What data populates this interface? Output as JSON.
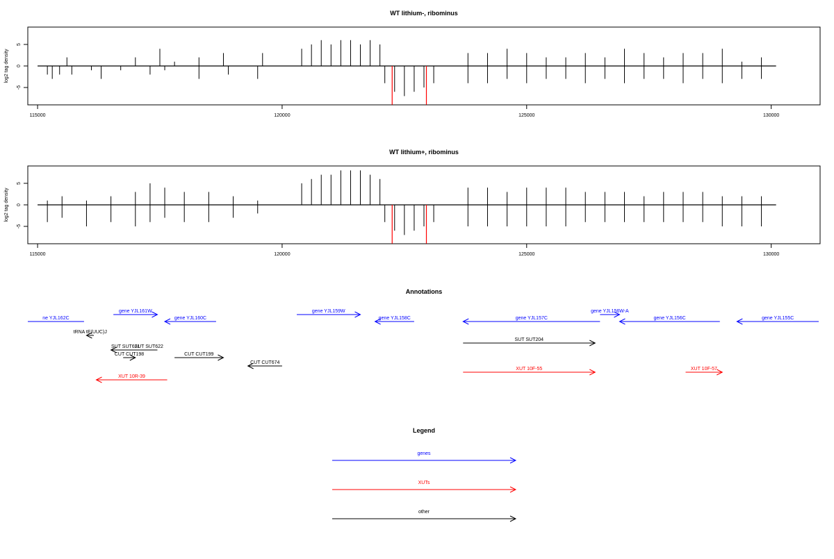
{
  "colors": {
    "genes": "#0000ff",
    "xuts": "#ff0000",
    "other": "#000000",
    "bar": "#000000",
    "highlight": "#ff0000"
  },
  "chart_data": [
    {
      "type": "bar",
      "title": "WT lithium-, ribominus",
      "xlabel": "",
      "ylabel": "log2 tag density",
      "xlim": [
        114800,
        131000
      ],
      "ylim": [
        -9,
        9
      ],
      "xticks": [
        {
          "value": 115000,
          "label": "115000"
        },
        {
          "value": 120000,
          "label": "120000"
        },
        {
          "value": 125000,
          "label": "125000"
        },
        {
          "value": 130000,
          "label": "130000"
        }
      ],
      "yticks": [
        {
          "value": 5,
          "label": "5"
        },
        {
          "value": 0,
          "label": "0"
        },
        {
          "value": -5,
          "label": "-5"
        }
      ],
      "series": [
        {
          "x": [
            115200,
            115400,
            115600,
            116000,
            116300,
            117000,
            117500,
            117800,
            118300,
            118800,
            119300,
            119600
          ],
          "values": [
            0,
            0,
            2,
            0,
            0,
            2,
            4,
            1,
            2,
            3,
            0,
            3
          ]
        },
        {
          "x": [
            115200,
            115300,
            115450,
            115700,
            116100,
            116300,
            116700,
            117300,
            117600,
            118300,
            118900,
            119500
          ],
          "values": [
            -2,
            -3,
            -2,
            -2,
            -1,
            -3,
            -1,
            -2,
            -1,
            -3,
            -2,
            -3
          ]
        },
        {
          "x": [
            120400,
            120600,
            120800,
            121000,
            121200,
            121400,
            121600,
            121800,
            122000
          ],
          "values": [
            4,
            5,
            6,
            5,
            6,
            6,
            5,
            6,
            5
          ]
        },
        {
          "x": [
            122100,
            122300,
            122500,
            122700,
            122900,
            123100
          ],
          "values": [
            -4,
            -6,
            -7,
            -6,
            -5,
            -4
          ]
        },
        {
          "x": [
            123800,
            124200,
            124600,
            125000,
            125400,
            125800,
            126200,
            126600,
            127000,
            127400,
            127800,
            128200,
            128600,
            129000,
            129400,
            129800
          ],
          "values": [
            3,
            3,
            4,
            3,
            2,
            2,
            3,
            2,
            4,
            3,
            2,
            3,
            3,
            4,
            1,
            2
          ]
        },
        {
          "x": [
            123800,
            124200,
            124600,
            125000,
            125400,
            125800,
            126200,
            126600,
            127000,
            127400,
            127800,
            128200,
            128600,
            129000,
            129400,
            129800
          ],
          "values": [
            -4,
            -4,
            -3,
            -4,
            -3,
            -3,
            -4,
            -3,
            -4,
            -3,
            -3,
            -4,
            -3,
            -4,
            -3,
            -3
          ]
        }
      ],
      "highlights": [
        {
          "x": 122250,
          "value": -9
        },
        {
          "x": 122950,
          "value": -9
        }
      ]
    },
    {
      "type": "bar",
      "title": "WT lithium+, ribominus",
      "xlabel": "",
      "ylabel": "log2 tag density",
      "xlim": [
        114800,
        131000
      ],
      "ylim": [
        -9,
        9
      ],
      "xticks": [
        {
          "value": 115000,
          "label": "115000"
        },
        {
          "value": 120000,
          "label": "120000"
        },
        {
          "value": 125000,
          "label": "125000"
        },
        {
          "value": 130000,
          "label": "130000"
        }
      ],
      "yticks": [
        {
          "value": 5,
          "label": "5"
        },
        {
          "value": 0,
          "label": "0"
        },
        {
          "value": -5,
          "label": "-5"
        }
      ],
      "series": [
        {
          "x": [
            115200,
            115500,
            116000,
            116500,
            117000,
            117300,
            117600,
            118000,
            118500,
            119000,
            119500
          ],
          "values": [
            1,
            2,
            1,
            2,
            3,
            5,
            4,
            3,
            3,
            2,
            1
          ]
        },
        {
          "x": [
            115200,
            115500,
            116000,
            116500,
            117000,
            117300,
            117600,
            118000,
            118500,
            119000,
            119500
          ],
          "values": [
            -4,
            -3,
            -5,
            -4,
            -5,
            -4,
            -3,
            -4,
            -4,
            -3,
            -2
          ]
        },
        {
          "x": [
            120400,
            120600,
            120800,
            121000,
            121200,
            121400,
            121600,
            121800,
            122000
          ],
          "values": [
            5,
            6,
            7,
            7,
            8,
            8,
            8,
            7,
            6
          ]
        },
        {
          "x": [
            122100,
            122300,
            122500,
            122700,
            122900,
            123100
          ],
          "values": [
            -4,
            -6,
            -7,
            -6,
            -5,
            -4
          ]
        },
        {
          "x": [
            123800,
            124200,
            124600,
            125000,
            125400,
            125800,
            126200,
            126600,
            127000,
            127400,
            127800,
            128200,
            128600,
            129000,
            129400,
            129800
          ],
          "values": [
            4,
            4,
            3,
            4,
            4,
            4,
            3,
            3,
            3,
            2,
            3,
            3,
            3,
            2,
            2,
            2
          ]
        },
        {
          "x": [
            123800,
            124200,
            124600,
            125000,
            125400,
            125800,
            126200,
            126600,
            127000,
            127400,
            127800,
            128200,
            128600,
            129000,
            129400,
            129800
          ],
          "values": [
            -5,
            -5,
            -5,
            -5,
            -5,
            -5,
            -4,
            -4,
            -4,
            -4,
            -4,
            -4,
            -4,
            -5,
            -5,
            -5
          ]
        }
      ],
      "highlights": [
        {
          "x": 122250,
          "value": -9
        },
        {
          "x": 122950,
          "value": -9
        }
      ]
    }
  ],
  "annotations": {
    "title": "Annotations",
    "items": [
      {
        "label": "ne YJL162C",
        "start": 114800,
        "end": 115950,
        "color": "#0000ff",
        "dir": "none"
      },
      {
        "label": "gene YJL161W",
        "start": 116550,
        "end": 117450,
        "color": "#0000ff",
        "dir": "right"
      },
      {
        "label": "gene YJL160C",
        "start": 117600,
        "end": 118650,
        "color": "#0000ff",
        "dir": "left"
      },
      {
        "label": "gene YJL159W",
        "start": 120300,
        "end": 121600,
        "color": "#0000ff",
        "dir": "right"
      },
      {
        "label": "gene YJL158C",
        "start": 121900,
        "end": 122700,
        "color": "#0000ff",
        "dir": "left"
      },
      {
        "label": "gene YJL157C",
        "start": 123700,
        "end": 126500,
        "color": "#0000ff",
        "dir": "left"
      },
      {
        "label": "gene YJL156W-A",
        "start": 126500,
        "end": 126900,
        "color": "#0000ff",
        "dir": "right"
      },
      {
        "label": "gene YJL156C",
        "start": 126900,
        "end": 128950,
        "color": "#0000ff",
        "dir": "left"
      },
      {
        "label": "gene YJL155C",
        "start": 129300,
        "end": 131000,
        "color": "#0000ff",
        "dir": "left"
      },
      {
        "label": "tRNA tE(UUC)J",
        "start": 116000,
        "end": 116150,
        "color": "#000000",
        "dir": "left"
      },
      {
        "label": "SUT SUT621",
        "start": 116500,
        "end": 117100,
        "color": "#000000",
        "dir": "left"
      },
      {
        "label": "SUT SUT622",
        "start": 117100,
        "end": 117450,
        "color": "#000000",
        "dir": "none"
      },
      {
        "label": "CUT CUT198",
        "start": 116750,
        "end": 117000,
        "color": "#000000",
        "dir": "right"
      },
      {
        "label": "CUT CUT199",
        "start": 117800,
        "end": 118800,
        "color": "#000000",
        "dir": "right"
      },
      {
        "label": "CUT CUT674",
        "start": 119300,
        "end": 120000,
        "color": "#000000",
        "dir": "left"
      },
      {
        "label": "SUT SUT204",
        "start": 123700,
        "end": 126400,
        "color": "#000000",
        "dir": "right"
      },
      {
        "label": "XUT 10R-39",
        "start": 116200,
        "end": 117650,
        "color": "#ff0000",
        "dir": "left"
      },
      {
        "label": "XUT 10F-55",
        "start": 123700,
        "end": 126400,
        "color": "#ff0000",
        "dir": "right"
      },
      {
        "label": "XUT 10F-57",
        "start": 128250,
        "end": 129000,
        "color": "#ff0000",
        "dir": "right"
      }
    ]
  },
  "legend": {
    "title": "Legend",
    "items": [
      {
        "label": "genes",
        "color": "#0000ff"
      },
      {
        "label": "XUTs",
        "color": "#ff0000"
      },
      {
        "label": "other",
        "color": "#000000"
      }
    ]
  }
}
